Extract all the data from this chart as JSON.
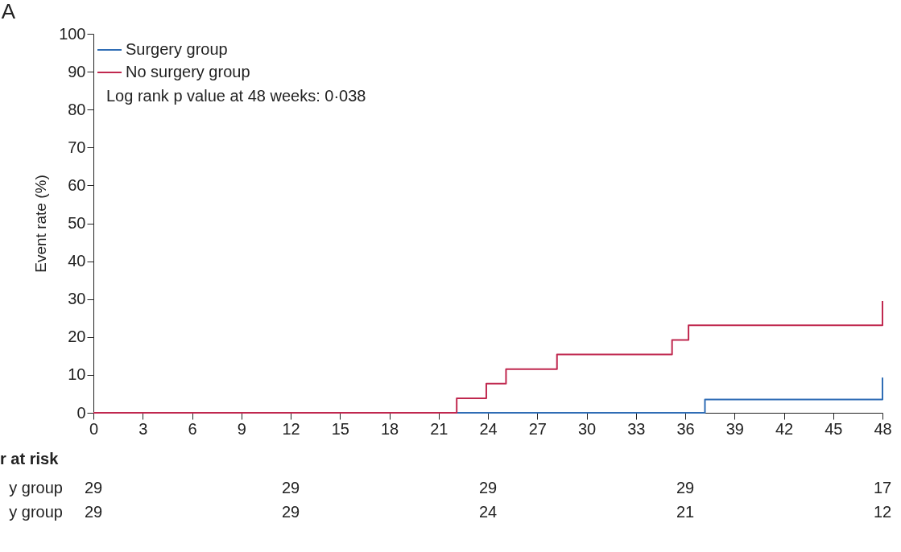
{
  "chart_data": [
    {
      "type": "step",
      "title": "A",
      "ylabel": "Event rate (%)",
      "xlim": [
        0,
        48
      ],
      "ylim": [
        0,
        100
      ],
      "xticks": [
        0,
        3,
        6,
        9,
        12,
        15,
        18,
        21,
        24,
        27,
        30,
        33,
        36,
        39,
        42,
        45,
        48
      ],
      "yticks": [
        0,
        10,
        20,
        30,
        40,
        50,
        60,
        70,
        80,
        90,
        100
      ],
      "grid": false,
      "legend": "top left",
      "line_style": "solid",
      "annotations": [
        "Log rank p value at 48 weeks: 0·038"
      ],
      "series": [
        {
          "name": "Surgery group",
          "color": "#2f6db5",
          "x": [
            0,
            37.2,
            48,
            48
          ],
          "values": [
            0,
            3.5,
            3.5,
            9.3
          ]
        },
        {
          "name": "No surgery group",
          "color": "#c0284f",
          "x": [
            0,
            22.1,
            23.9,
            25.1,
            28.2,
            35.2,
            36.2,
            48,
            48
          ],
          "values": [
            0,
            3.8,
            7.7,
            11.5,
            15.4,
            19.2,
            23.1,
            23.1,
            29.5
          ]
        }
      ]
    },
    {
      "type": "other",
      "title": "r at risk",
      "y_categories": [
        "y group",
        "y group"
      ],
      "annotations": [
        "29",
        "29",
        "29",
        "29",
        "17",
        "29",
        "29",
        "24",
        "21",
        "12"
      ]
    }
  ]
}
